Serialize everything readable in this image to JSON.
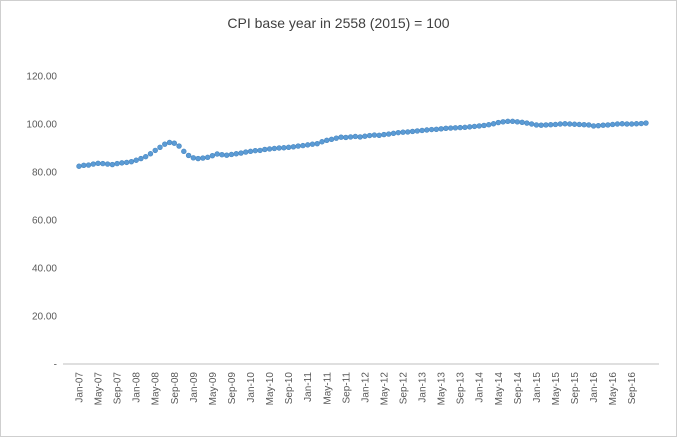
{
  "chart_data": {
    "type": "scatter",
    "title": "CPI base year in 2558 (2015) = 100",
    "ylabel": "",
    "xlabel": "",
    "ylim": [
      0,
      120
    ],
    "y_tick_labels": [
      "-",
      "20.00",
      "40.00",
      "60.00",
      "80.00",
      "100.00",
      "120.00"
    ],
    "y_tick_values": [
      0,
      20,
      40,
      60,
      80,
      100,
      120
    ],
    "x_tick_step": 4,
    "x_tick_labels": [
      "Jan-07",
      "May-07",
      "Sep-07",
      "Jan-08",
      "May-08",
      "Sep-08",
      "Jan-09",
      "May-09",
      "Sep-09",
      "Jan-10",
      "May-10",
      "Sep-10",
      "Jan-11",
      "May-11",
      "Sep-11",
      "Jan-12",
      "May-12",
      "Sep-12",
      "Jan-13",
      "May-13",
      "Sep-13",
      "Jan-14",
      "May-14",
      "Sep-14",
      "Jan-15",
      "May-15",
      "Sep-15",
      "Jan-16",
      "May-16",
      "Sep-16"
    ],
    "gridlines": false,
    "legend": "none",
    "marker_color": "#5b9bd5",
    "marker_edge_color": "#4a88c0",
    "axis_color": "#bfbfbf",
    "values": [
      82.4,
      82.8,
      82.9,
      83.3,
      83.6,
      83.5,
      83.3,
      83.1,
      83.5,
      83.8,
      84.0,
      84.3,
      84.9,
      85.6,
      86.4,
      87.6,
      89.0,
      90.3,
      91.6,
      92.3,
      92.0,
      90.8,
      88.6,
      86.9,
      85.9,
      85.6,
      85.8,
      86.1,
      86.8,
      87.5,
      87.2,
      87.0,
      87.3,
      87.6,
      87.9,
      88.3,
      88.6,
      88.9,
      89.0,
      89.4,
      89.6,
      89.8,
      90.0,
      90.1,
      90.3,
      90.5,
      90.8,
      91.0,
      91.3,
      91.6,
      91.8,
      92.6,
      93.2,
      93.6,
      94.1,
      94.5,
      94.4,
      94.6,
      94.8,
      94.6,
      94.9,
      95.2,
      95.4,
      95.3,
      95.6,
      95.8,
      96.1,
      96.4,
      96.6,
      96.7,
      96.9,
      97.1,
      97.3,
      97.5,
      97.7,
      97.8,
      98.0,
      98.2,
      98.3,
      98.4,
      98.5,
      98.6,
      98.8,
      99.0,
      99.2,
      99.4,
      99.7,
      100.1,
      100.6,
      100.9,
      101.1,
      101.1,
      100.9,
      100.7,
      100.4,
      100.0,
      99.6,
      99.5,
      99.6,
      99.7,
      99.8,
      100.0,
      100.1,
      100.0,
      99.9,
      99.8,
      99.7,
      99.6,
      99.2,
      99.3,
      99.5,
      99.6,
      99.8,
      100.0,
      100.1,
      100.0,
      100.0,
      100.1,
      100.2,
      100.4
    ]
  }
}
